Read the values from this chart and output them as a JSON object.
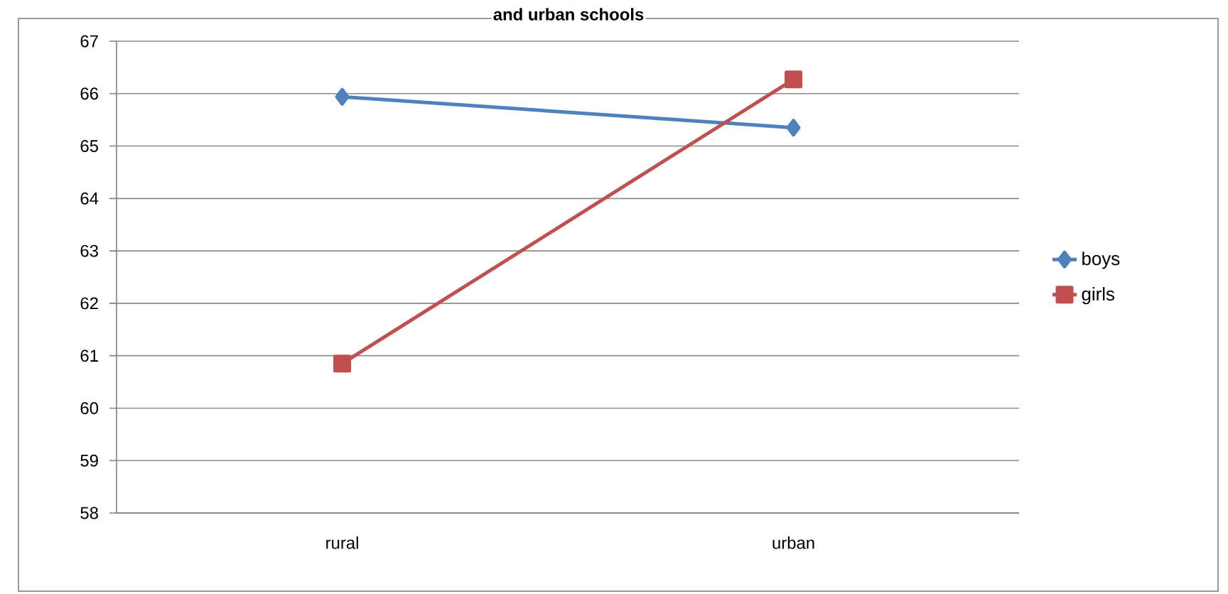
{
  "chart_data": {
    "type": "line",
    "title": "and urban schools",
    "categories": [
      "rural",
      "urban"
    ],
    "series": [
      {
        "name": "boys",
        "color": "#4f81bd",
        "values": [
          65.94,
          65.35
        ],
        "marker": "diamond"
      },
      {
        "name": "girls",
        "color": "#c0504d",
        "values": [
          60.85,
          66.27
        ],
        "marker": "square"
      }
    ],
    "ylim": [
      58,
      67
    ],
    "yticks": [
      58,
      59,
      60,
      61,
      62,
      63,
      64,
      65,
      66,
      67
    ],
    "grid": "y",
    "legend": "right"
  }
}
